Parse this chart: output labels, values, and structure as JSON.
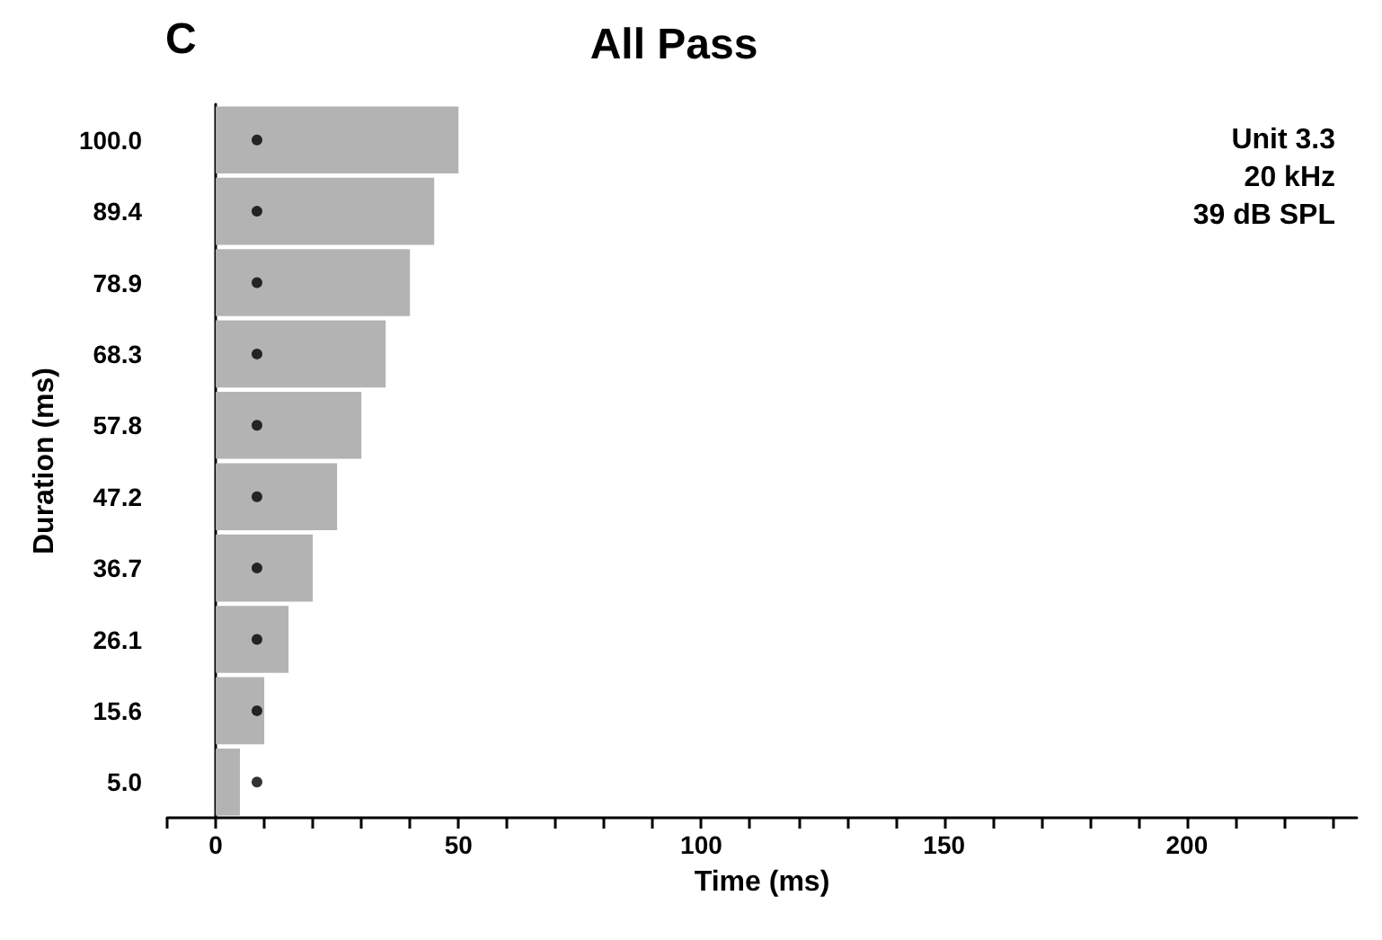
{
  "chart_data": {
    "type": "bar",
    "orientation": "horizontal",
    "title": "All Pass",
    "xlabel": "Time (ms)",
    "ylabel": "Duration (ms)",
    "categories": [
      "100.0",
      "89.4",
      "78.9",
      "68.3",
      "57.8",
      "47.2",
      "36.7",
      "26.1",
      "15.6",
      "5.0"
    ],
    "series": [
      {
        "color": "#b3b3b3",
        "values": [
          50,
          45,
          40,
          35,
          30,
          25,
          20,
          15,
          10,
          5
        ]
      },
      {
        "type": "scatter",
        "color": "#000000",
        "x": [
          "100.0",
          "89.4",
          "78.9",
          "68.3",
          "57.8",
          "47.2",
          "36.7",
          "26.1",
          "15.6",
          "5.0"
        ],
        "values": [
          8.5,
          8.5,
          8.5,
          8.5,
          8.5,
          8.5,
          8.5,
          8.5,
          8.5,
          8.5
        ]
      }
    ],
    "xlim": [
      -10,
      235
    ],
    "xticks": [
      {
        "value": -10,
        "label": null
      },
      0,
      {
        "value": 10,
        "label": null
      },
      {
        "value": 20,
        "label": null
      },
      {
        "value": 30,
        "label": null
      },
      {
        "value": 40,
        "label": null
      },
      50,
      {
        "value": 60,
        "label": null
      },
      {
        "value": 70,
        "label": null
      },
      {
        "value": 80,
        "label": null
      },
      {
        "value": 90,
        "label": null
      },
      100,
      {
        "value": 110,
        "label": null
      },
      {
        "value": 120,
        "label": null
      },
      {
        "value": 130,
        "label": null
      },
      {
        "value": 140,
        "label": null
      },
      150,
      {
        "value": 160,
        "label": null
      },
      {
        "value": 170,
        "label": null
      },
      {
        "value": 180,
        "label": null
      },
      {
        "value": 190,
        "label": null
      },
      200,
      {
        "value": 210,
        "label": null
      },
      {
        "value": 220,
        "label": null
      },
      {
        "value": 230,
        "label": null
      }
    ],
    "marker": "circle",
    "annotations": [
      "C",
      "Unit 3.3",
      "20 kHz",
      "39 dB SPL"
    ]
  }
}
